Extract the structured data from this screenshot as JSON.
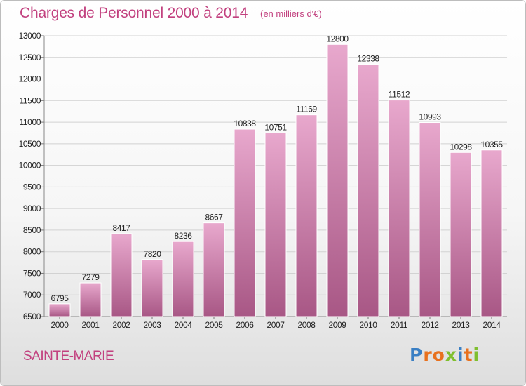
{
  "title": "Charges de Personnel 2000 à 2014",
  "subtitle": "(en milliers d'€)",
  "commune": "SAINTE-MARIE",
  "logo": {
    "text": "Proxiti",
    "letter_colors": [
      "#3a7fc4",
      "#e8711e",
      "#e8711e",
      "#7fbf2e",
      "#3a7fc4",
      "#e8711e",
      "#7fbf2e"
    ]
  },
  "colors": {
    "title": "#c2417f",
    "bar_light": "#e8a8cd",
    "bar_dark": "#a85785",
    "grid": "#d2d2d2",
    "axis_text": "#222222"
  },
  "chart_data": {
    "type": "bar",
    "categories": [
      "2000",
      "2001",
      "2002",
      "2003",
      "2004",
      "2005",
      "2006",
      "2007",
      "2008",
      "2009",
      "2010",
      "2011",
      "2012",
      "2013",
      "2014"
    ],
    "values": [
      6795,
      7279,
      8417,
      7820,
      8236,
      8667,
      10838,
      10751,
      11169,
      12800,
      12338,
      11512,
      10993,
      10298,
      10355
    ],
    "ylim": [
      6500,
      13000
    ],
    "yticks": [
      6500,
      7000,
      7500,
      8000,
      8500,
      9000,
      9500,
      10000,
      10500,
      11000,
      11500,
      12000,
      12500,
      13000
    ],
    "grid": true,
    "data_labels": true
  }
}
